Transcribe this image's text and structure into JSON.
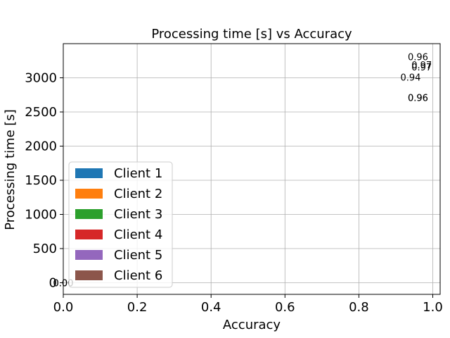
{
  "chart_data": {
    "type": "bar",
    "title": "Processing time [s] vs Accuracy",
    "xlabel": "Accuracy",
    "ylabel": "Processing time [s]",
    "xlim": [
      0.0,
      1.02
    ],
    "ylim": [
      -170,
      3500
    ],
    "xticks": [
      0.0,
      0.2,
      0.4,
      0.6,
      0.8,
      1.0
    ],
    "xtick_labels": [
      "0.0",
      "0.2",
      "0.4",
      "0.6",
      "0.8",
      "1.0"
    ],
    "yticks": [
      0,
      500,
      1000,
      1500,
      2000,
      2500,
      3000
    ],
    "ytick_labels": [
      "0",
      "500",
      "1000",
      "1500",
      "2000",
      "2500",
      "3000"
    ],
    "grid": true,
    "legend_position": "lower-left",
    "series": [
      {
        "name": "Client 1",
        "color": "#1f77b4"
      },
      {
        "name": "Client 2",
        "color": "#ff7f0e"
      },
      {
        "name": "Client 3",
        "color": "#2ca02c"
      },
      {
        "name": "Client 4",
        "color": "#d62728"
      },
      {
        "name": "Client 5",
        "color": "#9467bd"
      },
      {
        "name": "Client 6",
        "color": "#8c564b"
      }
    ],
    "annotations": [
      {
        "text": "0.96",
        "x": 0.96,
        "y": 3260
      },
      {
        "text": "0.97",
        "x": 0.97,
        "y": 3140
      },
      {
        "text": "0.97",
        "x": 0.97,
        "y": 3110
      },
      {
        "text": "0.94",
        "x": 0.94,
        "y": 2960
      },
      {
        "text": "0.96",
        "x": 0.96,
        "y": 2660
      },
      {
        "text": "0.96",
        "x": 0.96,
        "y": 2660
      },
      {
        "text": "0.00",
        "x": 0.0,
        "y": -50
      },
      {
        "text": "0.00",
        "x": 0.0,
        "y": -50
      }
    ]
  }
}
